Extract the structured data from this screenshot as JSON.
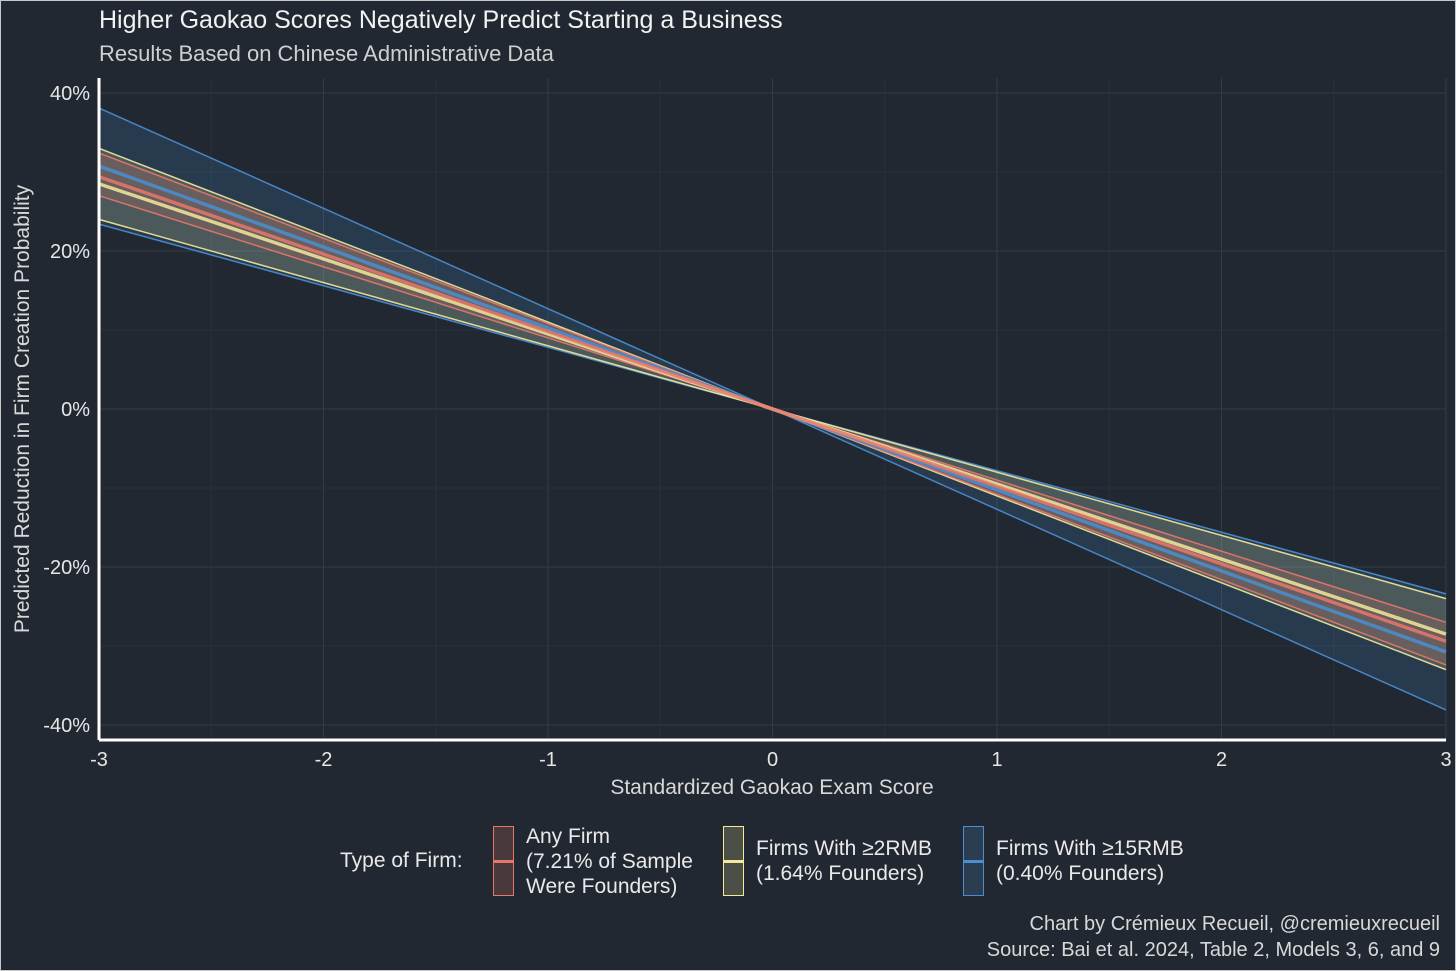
{
  "title": "Higher Gaokao Scores Negatively Predict Starting a Business",
  "subtitle": "Results Based on Chinese Administrative Data",
  "credit_line1": "Chart by Crémieux Recueil, @cremieuxrecueil",
  "credit_line2": "Source: Bai et al. 2024, Table 2, Models 3, 6, and 9",
  "legend": {
    "title": "Type of Firm:",
    "items": [
      {
        "label": "Any Firm\n(7.21% of Sample\nWere Founders)",
        "color": "#e8776b"
      },
      {
        "label": "Firms With ≥2RMB\n(1.64% Founders)",
        "color": "#f3e99a"
      },
      {
        "label": "Firms With ≥15RMB\n(0.40% Founders)",
        "color": "#4a8fd4"
      }
    ]
  },
  "chart_data": {
    "type": "line",
    "title": "Higher Gaokao Scores Negatively Predict Starting a Business",
    "xlabel": "Standardized Gaokao Exam Score",
    "ylabel": "Predicted Reduction in Firm Creation Probability",
    "xlim": [
      -3,
      3
    ],
    "ylim": [
      -40,
      40
    ],
    "x_ticks": [
      -3,
      -2,
      -1,
      0,
      1,
      2,
      3
    ],
    "y_ticks": [
      -40,
      -20,
      0,
      20,
      40
    ],
    "y_tick_labels": [
      "-40%",
      "-20%",
      "0%",
      "20%",
      "40%"
    ],
    "x": [
      -3,
      3
    ],
    "series": [
      {
        "name": "Firms With ≥15RMB (0.40% Founders)",
        "color": "#4a8fd4",
        "slope": -10.25,
        "ci_slope": [
          -12.7,
          -7.8
        ]
      },
      {
        "name": "Firms With ≥2RMB (1.64% Founders)",
        "color": "#f3e99a",
        "slope": -9.5,
        "ci_slope": [
          -11.0,
          -8.0
        ]
      },
      {
        "name": "Any Firm (7.21% of Sample Were Founders)",
        "color": "#e8776b",
        "slope": -9.8,
        "ci_slope": [
          -10.8,
          -9.0
        ]
      }
    ],
    "grid": true,
    "legend_position": "bottom"
  }
}
